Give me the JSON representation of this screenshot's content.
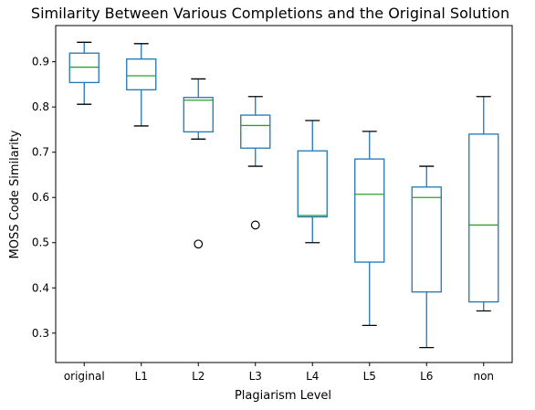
{
  "chart_data": {
    "type": "box",
    "title": "Similarity Between Various Completions and the Original Solution",
    "xlabel": "Plagiarism Level",
    "ylabel": "MOSS Code Similarity",
    "categories": [
      "original",
      "L1",
      "L2",
      "L3",
      "L4",
      "L5",
      "L6",
      "non"
    ],
    "yticks": [
      0.3,
      0.4,
      0.5,
      0.6,
      0.7,
      0.8,
      0.9
    ],
    "ylim": [
      0.235,
      0.98
    ],
    "grid": false,
    "boxes": [
      {
        "label": "original",
        "whisker_low": 0.806,
        "q1": 0.854,
        "median": 0.888,
        "q3": 0.919,
        "whisker_high": 0.943,
        "outliers": []
      },
      {
        "label": "L1",
        "whisker_low": 0.758,
        "q1": 0.838,
        "median": 0.869,
        "q3": 0.906,
        "whisker_high": 0.94,
        "outliers": []
      },
      {
        "label": "L2",
        "whisker_low": 0.729,
        "q1": 0.745,
        "median": 0.815,
        "q3": 0.821,
        "whisker_high": 0.862,
        "outliers": [
          0.497
        ]
      },
      {
        "label": "L3",
        "whisker_low": 0.669,
        "q1": 0.709,
        "median": 0.759,
        "q3": 0.782,
        "whisker_high": 0.823,
        "outliers": [
          0.539
        ]
      },
      {
        "label": "L4",
        "whisker_low": 0.5,
        "q1": 0.557,
        "median": 0.56,
        "q3": 0.703,
        "whisker_high": 0.77,
        "outliers": []
      },
      {
        "label": "L5",
        "whisker_low": 0.317,
        "q1": 0.457,
        "median": 0.607,
        "q3": 0.685,
        "whisker_high": 0.746,
        "outliers": []
      },
      {
        "label": "L6",
        "whisker_low": 0.268,
        "q1": 0.391,
        "median": 0.6,
        "q3": 0.623,
        "whisker_high": 0.669,
        "outliers": []
      },
      {
        "label": "non",
        "whisker_low": 0.349,
        "q1": 0.369,
        "median": 0.539,
        "q3": 0.74,
        "whisker_high": 0.823,
        "outliers": []
      }
    ],
    "colors": {
      "box": "#1f77b4",
      "median": "#2ca02c",
      "outlier": "#000000",
      "axis": "#000000"
    }
  }
}
